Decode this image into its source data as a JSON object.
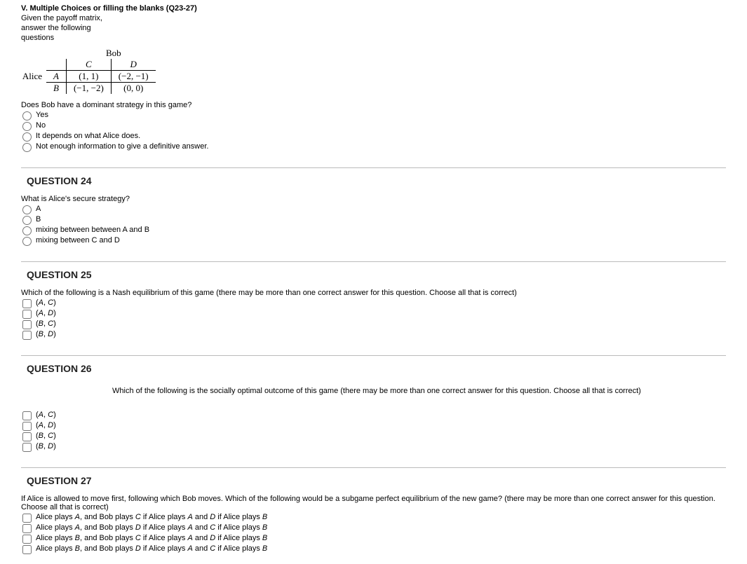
{
  "header": {
    "title": "V. Multiple Choices or filling the blanks (Q23-27)",
    "intro1": "Given the payoff matrix,",
    "intro2": "answer the following",
    "intro3": "questions"
  },
  "matrix": {
    "bob": "Bob",
    "alice": "Alice",
    "col_c": "C",
    "col_d": "D",
    "row_a": "A",
    "row_b": "B",
    "ac": "(1, 1)",
    "ad": "(−2, −1)",
    "bc": "(−1, −2)",
    "bd": "(0, 0)"
  },
  "q23": {
    "text": "Does Bob have a dominant strategy in this game?",
    "opt1": "Yes",
    "opt2": "No",
    "opt3": "It depends on what Alice does.",
    "opt4": "Not enough information to give a definitive answer."
  },
  "q24": {
    "num": "QUESTION 24",
    "text": "What is Alice's secure strategy?",
    "opt1": "A",
    "opt2": "B",
    "opt3": "mixing between between A and B",
    "opt4": "mixing between C and D"
  },
  "q25": {
    "num": "QUESTION 25",
    "text": "Which of the following is a Nash equilibrium of this game (there may be more than one correct answer for this question. Choose all that is correct)",
    "opt1_pre": "(",
    "opt1_a": "A",
    "opt1_mid": ", ",
    "opt1_b": "C",
    "opt1_post": ")",
    "opt2_pre": "(",
    "opt2_a": "A",
    "opt2_mid": ", ",
    "opt2_b": "D",
    "opt2_post": ")",
    "opt3_pre": "(",
    "opt3_a": "B",
    "opt3_mid": ", ",
    "opt3_b": "C",
    "opt3_post": ")",
    "opt4_pre": "(",
    "opt4_a": "B",
    "opt4_mid": ", ",
    "opt4_b": "D",
    "opt4_post": ")"
  },
  "q26": {
    "num": "QUESTION 26",
    "text": "Which of the following is the socially optimal outcome of this game (there may be more than one correct answer for this question. Choose all that is correct)",
    "opt1_pre": "(",
    "opt1_a": "A",
    "opt1_mid": ", ",
    "opt1_b": "C",
    "opt1_post": ")",
    "opt2_pre": "(",
    "opt2_a": "A",
    "opt2_mid": ", ",
    "opt2_b": "D",
    "opt2_post": ")",
    "opt3_pre": "(",
    "opt3_a": "B",
    "opt3_mid": ", ",
    "opt3_b": "C",
    "opt3_post": ")",
    "opt4_pre": "(",
    "opt4_a": "B",
    "opt4_mid": ", ",
    "opt4_b": "D",
    "opt4_post": ")"
  },
  "q27": {
    "num": "QUESTION 27",
    "text": "If Alice is allowed to move first, following which Bob moves. Which of the following would be a subgame perfect equilibrium of the new game? (there may be more than one correct answer for this question. Choose all that is correct)",
    "o1": {
      "p1": "Alice plays ",
      "a": "A",
      "p2": ", and Bob plays ",
      "b": "C",
      "p3": " if Alice plays ",
      "c": "A",
      "p4": " and ",
      "d": "D",
      "p5": " if Alice plays ",
      "e": "B"
    },
    "o2": {
      "p1": "Alice plays ",
      "a": "A",
      "p2": ", and Bob plays ",
      "b": "D",
      "p3": " if Alice plays ",
      "c": "A",
      "p4": " and ",
      "d": "C",
      "p5": " if Alice plays ",
      "e": "B"
    },
    "o3": {
      "p1": "Alice plays ",
      "a": "B",
      "p2": ", and Bob plays ",
      "b": "C",
      "p3": " if Alice plays ",
      "c": "A",
      "p4": " and ",
      "d": "D",
      "p5": " if Alice plays ",
      "e": "B"
    },
    "o4": {
      "p1": "Alice plays ",
      "a": "B",
      "p2": ", and Bob plays ",
      "b": "D",
      "p3": " if Alice plays ",
      "c": "A",
      "p4": " and ",
      "d": "C",
      "p5": " if Alice plays ",
      "e": "B"
    }
  }
}
